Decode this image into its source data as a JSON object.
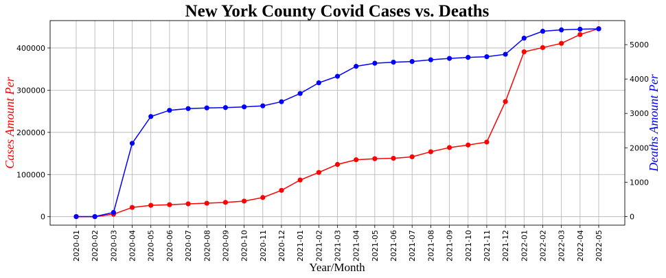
{
  "chart_data": {
    "type": "line",
    "title": "New York County Covid Cases vs. Deaths",
    "xlabel": "Year/Month",
    "ylabel_left": "Cases Amount Per",
    "ylabel_right": "Deaths Amount Per",
    "grid": true,
    "ylim_left": [
      -20000,
      465000
    ],
    "ylim_right": [
      -250,
      5700
    ],
    "yticks_left": [
      0,
      100000,
      200000,
      300000,
      400000
    ],
    "yticks_right": [
      0,
      1000,
      2000,
      3000,
      4000,
      5000
    ],
    "categories": [
      "2020-01",
      "2020-02",
      "2020-03",
      "2020-04",
      "2020-05",
      "2020-06",
      "2020-07",
      "2020-08",
      "2020-09",
      "2020-10",
      "2020-11",
      "2020-12",
      "2021-01",
      "2021-02",
      "2021-03",
      "2021-04",
      "2021-05",
      "2021-06",
      "2021-07",
      "2021-08",
      "2021-09",
      "2021-10",
      "2021-11",
      "2021-12",
      "2022-01",
      "2022-02",
      "2022-03",
      "2022-04",
      "2022-05"
    ],
    "series": [
      {
        "axis": "left",
        "color": "#ff0000",
        "values": [
          0,
          0,
          6000,
          22000,
          27000,
          28500,
          30500,
          32000,
          34000,
          37000,
          45500,
          62500,
          87000,
          105000,
          124000,
          135000,
          137500,
          138500,
          142000,
          154000,
          164000,
          170000,
          177000,
          273000,
          391000,
          401000,
          411000,
          432000,
          446000
        ]
      },
      {
        "axis": "right",
        "color": "#0000ff",
        "values": [
          0,
          0,
          120,
          2130,
          2910,
          3090,
          3140,
          3160,
          3170,
          3190,
          3220,
          3340,
          3580,
          3890,
          4080,
          4370,
          4460,
          4490,
          4510,
          4560,
          4600,
          4630,
          4650,
          4720,
          5190,
          5390,
          5430,
          5450,
          5460
        ]
      }
    ]
  }
}
